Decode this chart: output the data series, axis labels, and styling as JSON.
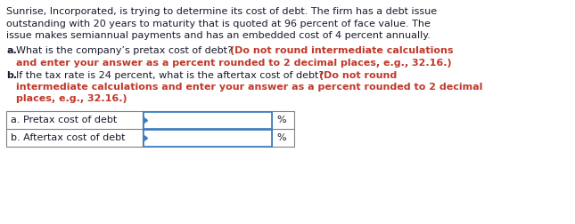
{
  "background_color": "#ffffff",
  "body_text_color": "#1a1a2e",
  "bold_text_color": "#c0392b",
  "label_color": "#1a1a2e",
  "font_size_body": 8.0,
  "font_size_table": 8.0,
  "table_border_color": "#808080",
  "table_input_border_color": "#3a7abf",
  "para1_lines": [
    "Sunrise, Incorporated, is trying to determine its cost of debt. The firm has a debt issue",
    "outstanding with 20 years to maturity that is quoted at 96 percent of face value. The",
    "issue makes semiannual payments and has an embedded cost of 4 percent annually."
  ],
  "qa_line1_normal": "a. What is the company’s pretax cost of debt? ",
  "qa_line1_bold": "(Do not round intermediate calculations",
  "qa_line2_bold": "and enter your answer as a percent rounded to 2 decimal places, e.g., 32.16.)",
  "qb_line1_normal": "b. If the tax rate is 24 percent, what is the aftertax cost of debt? ",
  "qb_line1_bold": "(Do not round",
  "qb_line2_bold": "intermediate calculations and enter your answer as a percent rounded to 2 decimal",
  "qb_line3_bold": "places, e.g., 32.16.)",
  "table_row1_label": "a. Pretax cost of debt",
  "table_row2_label": "b. Aftertax cost of debt",
  "table_suffix": "%"
}
